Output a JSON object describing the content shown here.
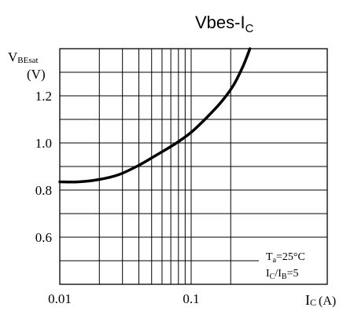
{
  "chart_data": {
    "type": "line",
    "title": "Vbes-I",
    "title_sub": "C",
    "ylabel": "V",
    "ylabel_sub": "BEsat",
    "ylabel_unit": "(V)",
    "xlabel": "I",
    "xlabel_sub": "C",
    "xlabel_unit": "(A)",
    "xscale": "log",
    "xlim": [
      0.01,
      0.3
    ],
    "ylim": [
      0.4,
      1.4
    ],
    "x_ticks": [
      {
        "value": 0.01,
        "label": "0.01"
      },
      {
        "value": 0.1,
        "label": "0.1"
      }
    ],
    "y_ticks": [
      {
        "value": 0.6,
        "label": "0.6"
      },
      {
        "value": 0.8,
        "label": "0.8"
      },
      {
        "value": 1.0,
        "label": "1.0"
      },
      {
        "value": 1.2,
        "label": "1.2"
      }
    ],
    "grid": true,
    "series": [
      {
        "x": [
          0.01,
          0.014,
          0.02,
          0.028,
          0.04,
          0.055,
          0.075,
          0.1,
          0.13,
          0.17,
          0.21,
          0.25,
          0.28
        ],
        "y": [
          0.835,
          0.835,
          0.845,
          0.865,
          0.905,
          0.95,
          0.995,
          1.045,
          1.105,
          1.175,
          1.245,
          1.33,
          1.4
        ]
      }
    ],
    "annotation": {
      "line1_main": "T",
      "line1_sub": "a",
      "line1_rest": "=25°C",
      "line2_a": "I",
      "line2_a_sub": "C",
      "line2_sep": "/I",
      "line2_b_sub": "B",
      "line2_rest": "=5"
    }
  }
}
